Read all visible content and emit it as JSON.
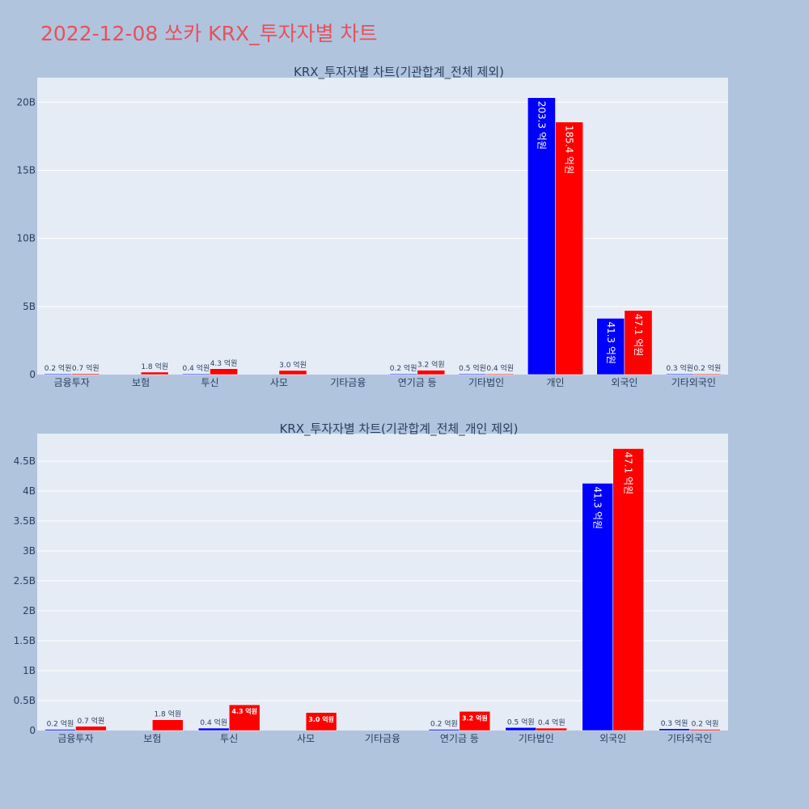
{
  "page_title": "2022-12-08 쏘카 KRX_투자자별 차트",
  "colors": {
    "buy": "#0000ff",
    "sell": "#ff0000",
    "plot_bg": "#e5ecf6",
    "page_bg": "#b0c4de",
    "title": "#e8505b"
  },
  "chart_data": [
    {
      "type": "bar",
      "title": "KRX_투자자별 차트(기관합계_전체 제외)",
      "xlabel": "",
      "ylabel": "",
      "categories": [
        "금융투자",
        "보험",
        "투신",
        "사모",
        "기타금융",
        "연기금 등",
        "기타법인",
        "개인",
        "외국인",
        "기타외국인"
      ],
      "ylim": [
        0,
        21.8
      ],
      "y_unit": "B",
      "yticks": [
        0,
        5,
        10,
        15,
        20
      ],
      "ytick_labels": [
        "0",
        "5B",
        "10B",
        "15B",
        "20B"
      ],
      "grid": true,
      "series": [
        {
          "color": "#0000ff",
          "values": [
            0.02,
            null,
            0.04,
            null,
            null,
            0.02,
            0.05,
            20.33,
            4.13,
            0.03
          ],
          "labels": [
            "0.2 억원",
            "",
            "0.4 억원",
            "",
            "",
            "0.2 억원",
            "0.5 억원",
            "203.3 억원",
            "41.3 억원",
            "0.3 억원"
          ]
        },
        {
          "color": "#ff0000",
          "values": [
            0.07,
            0.18,
            0.43,
            0.3,
            null,
            0.32,
            0.04,
            18.54,
            4.71,
            0.02
          ],
          "labels": [
            "0.7 억원",
            "1.8 억원",
            "4.3 억원",
            "3.0 억원",
            "",
            "3.2 억원",
            "0.4 억원",
            "185.4 억원",
            "47.1 억원",
            "0.2 억원"
          ]
        }
      ]
    },
    {
      "type": "bar",
      "title": "KRX_투자자별 차트(기관합계_전체_개인 제외)",
      "xlabel": "",
      "ylabel": "",
      "categories": [
        "금융투자",
        "보험",
        "투신",
        "사모",
        "기타금융",
        "연기금 등",
        "기타법인",
        "외국인",
        "기타외국인"
      ],
      "ylim": [
        0,
        4.96
      ],
      "y_unit": "B",
      "yticks": [
        0,
        0.5,
        1,
        1.5,
        2,
        2.5,
        3,
        3.5,
        4,
        4.5
      ],
      "ytick_labels": [
        "0",
        "0.5B",
        "1B",
        "1.5B",
        "2B",
        "2.5B",
        "3B",
        "3.5B",
        "4B",
        "4.5B"
      ],
      "grid": true,
      "series": [
        {
          "color": "#0000ff",
          "values": [
            0.02,
            null,
            0.04,
            null,
            null,
            0.02,
            0.05,
            4.13,
            0.03
          ],
          "labels": [
            "0.2 억원",
            "",
            "0.4 억원",
            "",
            "",
            "0.2 억원",
            "0.5 억원",
            "41.3 억원",
            "0.3 억원"
          ]
        },
        {
          "color": "#ff0000",
          "values": [
            0.07,
            0.18,
            0.43,
            0.3,
            null,
            0.32,
            0.04,
            4.71,
            0.02
          ],
          "labels": [
            "0.7 억원",
            "1.8 억원",
            "4.3 억원",
            "3.0 억원",
            "",
            "3.2 억원",
            "0.4 억원",
            "47.1 억원",
            "0.2 억원"
          ]
        }
      ]
    }
  ]
}
